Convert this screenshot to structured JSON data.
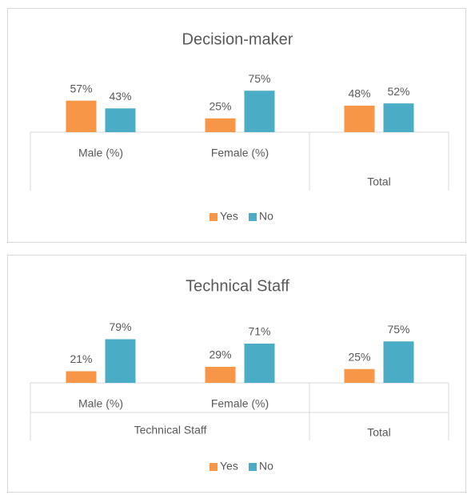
{
  "chart_data": [
    {
      "type": "bar",
      "title": "Decision-maker",
      "categories": [
        "Male (%)",
        "Female (%)",
        "Total"
      ],
      "series": [
        {
          "name": "Yes",
          "color": "#f79646",
          "values": [
            57,
            25,
            48
          ],
          "value_labels": [
            "57%",
            "25%",
            "48%"
          ]
        },
        {
          "name": "No",
          "color": "#4bacc6",
          "values": [
            43,
            75,
            52
          ],
          "value_labels": [
            "43%",
            "75%",
            "52%"
          ]
        }
      ],
      "ylim": [
        0,
        100
      ],
      "legend": "bottom"
    },
    {
      "type": "bar",
      "title": "Technical Staff",
      "categories": [
        "Male (%)",
        "Female (%)",
        "Total"
      ],
      "category_group": "Technical Staff",
      "series": [
        {
          "name": "Yes",
          "color": "#f79646",
          "values": [
            21,
            29,
            25
          ],
          "value_labels": [
            "21%",
            "29%",
            "25%"
          ]
        },
        {
          "name": "No",
          "color": "#4bacc6",
          "values": [
            79,
            71,
            75
          ],
          "value_labels": [
            "79%",
            "71%",
            "75%"
          ]
        }
      ],
      "ylim": [
        0,
        100
      ],
      "legend": "bottom"
    }
  ]
}
